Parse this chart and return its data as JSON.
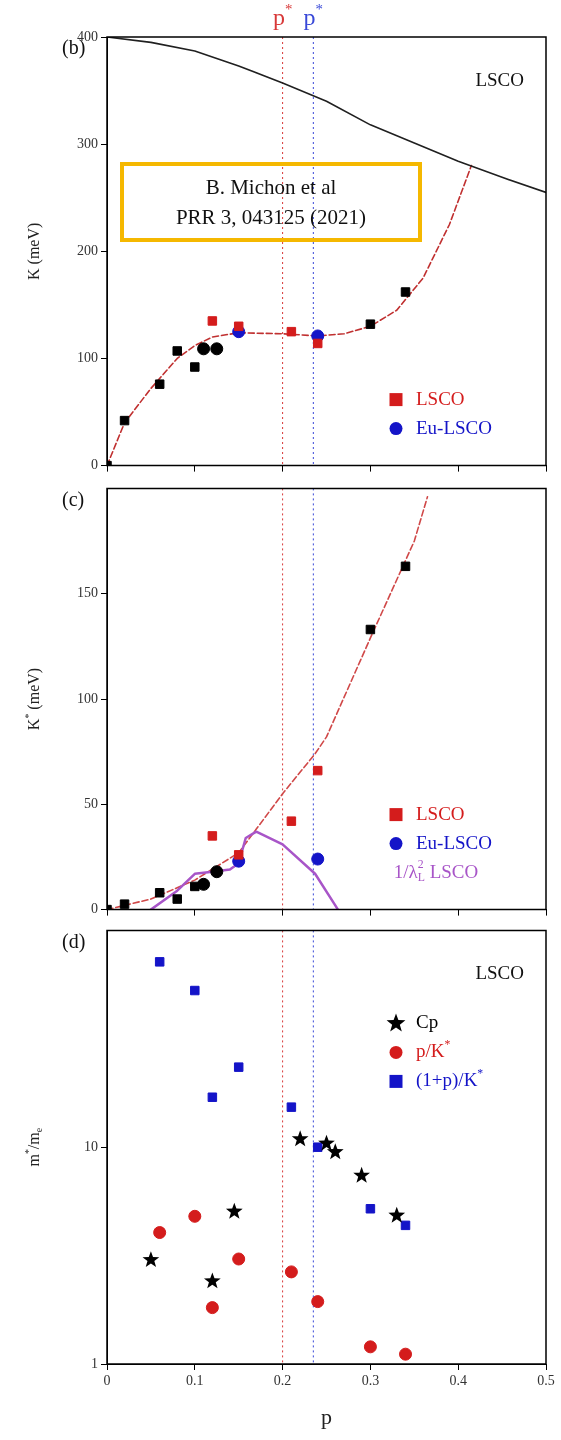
{
  "chart_data": [
    {
      "type": "scatter",
      "ylabel": "K (meV)",
      "xlim": [
        0,
        0.5
      ],
      "xticks": [
        0,
        0.1,
        0.2,
        0.3,
        0.4,
        0.5
      ],
      "ylim": [
        0,
        400
      ],
      "yticks": [
        0,
        100,
        200,
        300,
        400
      ],
      "tick_labels": "y",
      "legend": "bottom right",
      "annotations": [
        "(b)",
        "LSCO",
        "B. Michon et al\nPRR 3, 043125 (2021)"
      ],
      "ref_lines": [
        {
          "axis": "x",
          "value": 0.2,
          "label": "p$^{*}$",
          "color": "#d83838",
          "line_style": "dotted"
        },
        {
          "axis": "x",
          "value": 0.235,
          "label": "p$^{*}$",
          "color": "#3848d8",
          "line_style": "dotted"
        }
      ],
      "series": [
        {
          "name": "LSCO",
          "type": "scatter",
          "marker": "square",
          "color": "#d41c1c",
          "x": [
            0.12,
            0.15,
            0.21,
            0.24
          ],
          "values": [
            135,
            130,
            125,
            114
          ]
        },
        {
          "name": "Eu-LSCO",
          "type": "scatter",
          "marker": "circle",
          "color": "#1414c8",
          "x": [
            0.15,
            0.24
          ],
          "values": [
            125,
            121
          ]
        },
        {
          "type": "scatter",
          "marker": "square",
          "color": "#000000",
          "x": [
            0,
            0.02,
            0.06,
            0.08,
            0.1,
            0.3,
            0.34
          ],
          "values": [
            0,
            42,
            76,
            107,
            92,
            132,
            162
          ]
        },
        {
          "type": "scatter",
          "marker": "circle",
          "color": "#000000",
          "x": [
            0.11,
            0.125
          ],
          "values": [
            109,
            109
          ]
        },
        {
          "type": "line",
          "marker": "none",
          "line_style": "solid",
          "color": "#202020",
          "x": [
            0,
            0.05,
            0.1,
            0.15,
            0.2,
            0.25,
            0.3,
            0.35,
            0.4,
            0.45,
            0.5
          ],
          "values": [
            400,
            395,
            387,
            373,
            357,
            340,
            318,
            301,
            284,
            269,
            255
          ]
        },
        {
          "type": "line",
          "marker": "none",
          "line_style": "dashed",
          "color": "#c03030",
          "x": [
            0,
            0.02,
            0.05,
            0.08,
            0.1,
            0.12,
            0.15,
            0.2,
            0.24,
            0.27,
            0.3,
            0.33,
            0.36,
            0.39,
            0.415
          ],
          "values": [
            0,
            40,
            72,
            100,
            112,
            120,
            124,
            123,
            121,
            123,
            130,
            145,
            175,
            225,
            280
          ]
        }
      ]
    },
    {
      "type": "scatter",
      "ylabel": "K$^{*}$ (meV)",
      "xlim": [
        0,
        0.5
      ],
      "xticks": [
        0,
        0.1,
        0.2,
        0.3,
        0.4,
        0.5
      ],
      "ylim": [
        0,
        200
      ],
      "yticks": [
        0,
        50,
        100,
        150
      ],
      "tick_labels": "y",
      "legend": "bottom right",
      "annotations": [
        "(c)"
      ],
      "ref_lines": [
        {
          "axis": "x",
          "value": 0.2,
          "color": "#d83838",
          "line_style": "dotted"
        },
        {
          "axis": "x",
          "value": 0.235,
          "color": "#3848d8",
          "line_style": "dotted"
        }
      ],
      "series": [
        {
          "name": "LSCO",
          "type": "scatter",
          "marker": "square",
          "color": "#d41c1c",
          "x": [
            0.12,
            0.15,
            0.21,
            0.24
          ],
          "values": [
            35,
            26,
            42,
            66
          ]
        },
        {
          "name": "Eu-LSCO",
          "type": "scatter",
          "marker": "circle",
          "color": "#1414c8",
          "x": [
            0.15,
            0.24
          ],
          "values": [
            23,
            24
          ]
        },
        {
          "name": "1/λ$_{L}$$^{2}$ LSCO",
          "type": "line",
          "marker": "none",
          "line_style": "solid",
          "color": "#a855c8",
          "x": [
            0.05,
            0.08,
            0.1,
            0.12,
            0.14,
            0.15,
            0.158,
            0.17,
            0.2,
            0.237,
            0.26,
            0.263
          ],
          "values": [
            0,
            9,
            17,
            18,
            19,
            22,
            34,
            37,
            31,
            17,
            2,
            0
          ]
        },
        {
          "type": "scatter",
          "marker": "square",
          "color": "#000000",
          "x": [
            0,
            0.02,
            0.06,
            0.08,
            0.1,
            0.3,
            0.34
          ],
          "values": [
            0,
            2.6,
            8,
            5,
            11,
            133,
            163
          ]
        },
        {
          "type": "scatter",
          "marker": "circle",
          "color": "#000000",
          "x": [
            0.11,
            0.125
          ],
          "values": [
            12,
            18
          ]
        },
        {
          "type": "line",
          "marker": "none",
          "line_style": "dashed",
          "color": "#d04848",
          "x": [
            0,
            0.05,
            0.1,
            0.15,
            0.2,
            0.237,
            0.25,
            0.3,
            0.35,
            0.365
          ],
          "values": [
            0,
            5,
            14,
            27,
            55,
            74,
            82,
            129,
            175,
            196
          ]
        }
      ]
    },
    {
      "type": "scatter",
      "ylabel": "m$^{*}$/m$_{e}$",
      "xlabel": "p",
      "xlim": [
        0,
        0.5
      ],
      "xticks": [
        0,
        0.1,
        0.2,
        0.3,
        0.4,
        0.5
      ],
      "ylim": [
        1,
        100
      ],
      "yticks": [
        1,
        10
      ],
      "log": "y",
      "legend": "top right",
      "annotations": [
        "(d)",
        "LSCO"
      ],
      "ref_lines": [
        {
          "axis": "x",
          "value": 0.2,
          "color": "#d83838",
          "line_style": "dotted"
        },
        {
          "axis": "x",
          "value": 0.235,
          "color": "#3848d8",
          "line_style": "dotted"
        }
      ],
      "series": [
        {
          "name": "Cp",
          "type": "scatter",
          "marker": "star",
          "color": "#000000",
          "x": [
            0.05,
            0.12,
            0.145,
            0.22,
            0.25,
            0.26,
            0.29,
            0.33
          ],
          "values": [
            3.02,
            2.41,
            5.05,
            10.9,
            10.4,
            9.5,
            7.4,
            4.84
          ]
        },
        {
          "name": "p/K$^{*}$",
          "type": "scatter",
          "marker": "circle",
          "color": "#d41c1c",
          "x": [
            0.06,
            0.1,
            0.12,
            0.15,
            0.21,
            0.24,
            0.3,
            0.34
          ],
          "values": [
            4.04,
            4.8,
            1.82,
            3.05,
            2.66,
            1.94,
            1.2,
            1.11
          ]
        },
        {
          "name": "(1+p)/K$^{*}$",
          "type": "scatter",
          "marker": "square",
          "color": "#1414c8",
          "x": [
            0.06,
            0.1,
            0.12,
            0.15,
            0.21,
            0.24,
            0.3,
            0.34
          ],
          "values": [
            71.6,
            52.8,
            17.0,
            23.4,
            15.3,
            10,
            5.2,
            4.36
          ]
        }
      ]
    }
  ]
}
